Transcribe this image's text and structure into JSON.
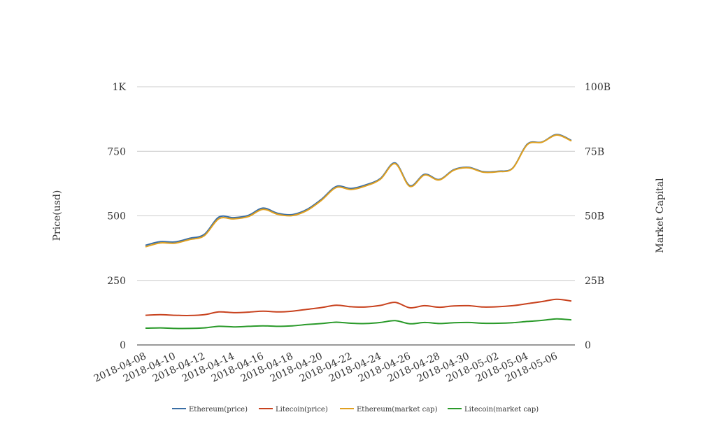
{
  "chart_data": {
    "type": "line",
    "title": "",
    "x": [
      "2018-04-08",
      "2018-04-09",
      "2018-04-10",
      "2018-04-11",
      "2018-04-12",
      "2018-04-13",
      "2018-04-14",
      "2018-04-15",
      "2018-04-16",
      "2018-04-17",
      "2018-04-18",
      "2018-04-19",
      "2018-04-20",
      "2018-04-21",
      "2018-04-22",
      "2018-04-23",
      "2018-04-24",
      "2018-04-25",
      "2018-04-26",
      "2018-04-27",
      "2018-04-28",
      "2018-04-29",
      "2018-04-30",
      "2018-05-01",
      "2018-05-02",
      "2018-05-03",
      "2018-05-04",
      "2018-05-05",
      "2018-05-06",
      "2018-05-07"
    ],
    "x_tick_labels": [
      "2018-04-08",
      "2018-04-10",
      "2018-04-12",
      "2018-04-14",
      "2018-04-16",
      "2018-04-18",
      "2018-04-20",
      "2018-04-22",
      "2018-04-24",
      "2018-04-26",
      "2018-04-28",
      "2018-04-30",
      "2018-05-02",
      "2018-05-04",
      "2018-05-06"
    ],
    "y_left": {
      "label": "Price(usd)",
      "ylim": [
        0,
        1000
      ],
      "ticks": [
        0,
        250,
        500,
        750,
        1000
      ],
      "tick_labels": [
        "0",
        "250",
        "500",
        "750",
        "1K"
      ]
    },
    "y_right": {
      "label": "Market Capital",
      "ylim": [
        0,
        100000000000
      ],
      "ticks": [
        0,
        25000000000,
        50000000000,
        75000000000,
        100000000000
      ],
      "tick_labels": [
        "0",
        "25B",
        "50B",
        "75B",
        "100B"
      ]
    },
    "grid": true,
    "legend_position": "bottom",
    "series": [
      {
        "name": "Ethereum(price)",
        "axis": "left",
        "color": "#3a6ea5",
        "values": [
          386,
          400,
          399,
          413,
          428,
          495,
          493,
          502,
          530,
          510,
          505,
          525,
          565,
          614,
          606,
          620,
          645,
          705,
          617,
          661,
          641,
          679,
          688,
          671,
          673,
          685,
          778,
          786,
          815,
          792
        ]
      },
      {
        "name": "Litecoin(price)",
        "axis": "left",
        "color": "#c8421e",
        "values": [
          115,
          117,
          115,
          114,
          117,
          128,
          125,
          127,
          131,
          128,
          131,
          138,
          145,
          154,
          148,
          147,
          153,
          165,
          144,
          152,
          146,
          151,
          152,
          147,
          148,
          152,
          160,
          168,
          177,
          170
        ]
      },
      {
        "name": "Ethereum(market cap)",
        "axis": "right",
        "color": "#e0a020",
        "values": [
          38000000000,
          39500000000,
          39400000000,
          40800000000,
          42300000000,
          48900000000,
          48800000000,
          49700000000,
          52500000000,
          50600000000,
          50100000000,
          52100000000,
          56100000000,
          61000000000,
          60200000000,
          61600000000,
          64200000000,
          70200000000,
          61400000000,
          65800000000,
          63900000000,
          67700000000,
          68600000000,
          66900000000,
          67100000000,
          68400000000,
          77600000000,
          78500000000,
          81300000000,
          79000000000
        ]
      },
      {
        "name": "Litecoin(market cap)",
        "axis": "right",
        "color": "#2a9a2a",
        "values": [
          6500000000,
          6600000000,
          6400000000,
          6400000000,
          6600000000,
          7200000000,
          7000000000,
          7200000000,
          7400000000,
          7200000000,
          7400000000,
          7900000000,
          8300000000,
          8800000000,
          8400000000,
          8300000000,
          8700000000,
          9400000000,
          8200000000,
          8700000000,
          8300000000,
          8600000000,
          8700000000,
          8400000000,
          8400000000,
          8600000000,
          9100000000,
          9500000000,
          10100000000,
          9700000000
        ]
      }
    ]
  }
}
